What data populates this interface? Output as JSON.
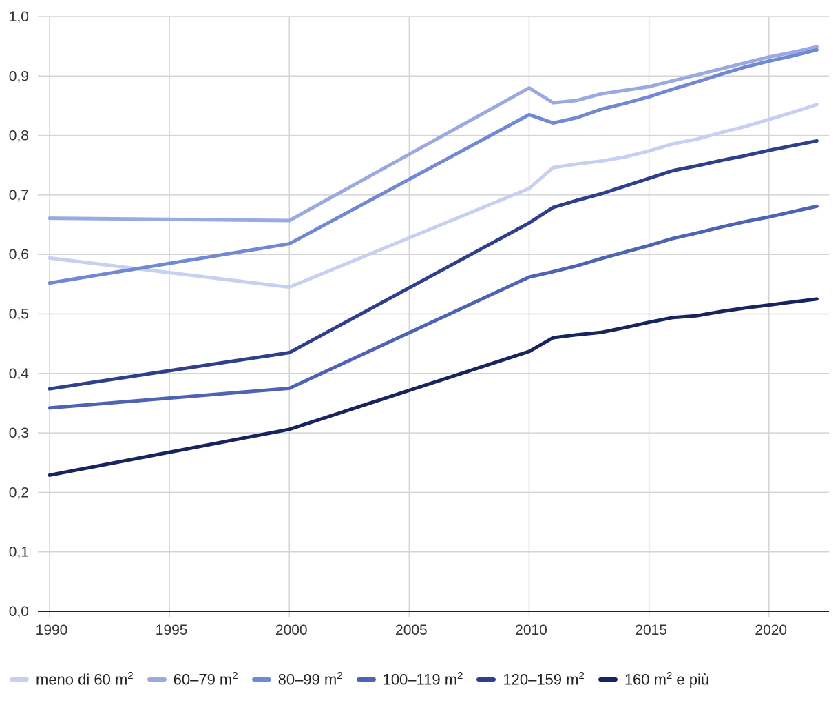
{
  "chart_data": {
    "type": "line",
    "title": "",
    "xlabel": "",
    "ylabel": "",
    "xlim": [
      1990,
      2023
    ],
    "ylim": [
      0,
      1.0
    ],
    "x_ticks": [
      1990,
      1995,
      2000,
      2005,
      2010,
      2015,
      2020
    ],
    "x_tick_labels": [
      "1990",
      "1995",
      "2000",
      "2005",
      "2010",
      "2015",
      "2020"
    ],
    "y_ticks": [
      0,
      0.1,
      0.2,
      0.3,
      0.4,
      0.5,
      0.6,
      0.7,
      0.8,
      0.9,
      1.0
    ],
    "y_tick_labels": [
      "0,0",
      "0,1",
      "0,2",
      "0,3",
      "0,4",
      "0,5",
      "0,6",
      "0,7",
      "0,8",
      "0,9",
      "1,0"
    ],
    "grid": true,
    "legend_position": "bottom",
    "x": [
      1990,
      2000,
      2010,
      2011,
      2012,
      2013,
      2014,
      2015,
      2016,
      2017,
      2018,
      2019,
      2020,
      2021,
      2022
    ],
    "series": [
      {
        "name": "meno di 60 m",
        "unit_suffix": "",
        "color": "#c7d0f0",
        "values": [
          0.594,
          0.545,
          0.711,
          0.746,
          0.752,
          0.757,
          0.764,
          0.774,
          0.786,
          0.794,
          0.805,
          0.815,
          0.827,
          0.839,
          0.852
        ]
      },
      {
        "name": "60–79 m",
        "unit_suffix": "",
        "color": "#9aaae0",
        "values": [
          0.661,
          0.657,
          0.88,
          0.855,
          0.859,
          0.87,
          0.876,
          0.882,
          0.892,
          0.902,
          0.912,
          0.922,
          0.932,
          0.94,
          0.949
        ]
      },
      {
        "name": "80–99 m",
        "unit_suffix": "",
        "color": "#7188d4",
        "values": [
          0.552,
          0.618,
          0.835,
          0.821,
          0.83,
          0.844,
          0.854,
          0.865,
          0.878,
          0.89,
          0.903,
          0.915,
          0.925,
          0.934,
          0.944
        ]
      },
      {
        "name": "100–119 m",
        "unit_suffix": "",
        "color": "#4e63b3",
        "values": [
          0.342,
          0.375,
          0.562,
          0.571,
          0.581,
          0.593,
          0.604,
          0.615,
          0.627,
          0.636,
          0.646,
          0.655,
          0.663,
          0.672,
          0.681
        ]
      },
      {
        "name": "120–159 m",
        "unit_suffix": "",
        "color": "#2e3f8c",
        "values": [
          0.374,
          0.435,
          0.653,
          0.679,
          0.691,
          0.702,
          0.715,
          0.728,
          0.741,
          0.749,
          0.758,
          0.766,
          0.775,
          0.783,
          0.791
        ]
      },
      {
        "name": "160 m",
        "unit_suffix": " e più",
        "color": "#18245e",
        "values": [
          0.229,
          0.306,
          0.437,
          0.46,
          0.465,
          0.469,
          0.477,
          0.486,
          0.494,
          0.497,
          0.504,
          0.51,
          0.515,
          0.52,
          0.525
        ]
      }
    ],
    "legend_superscript": "2"
  }
}
